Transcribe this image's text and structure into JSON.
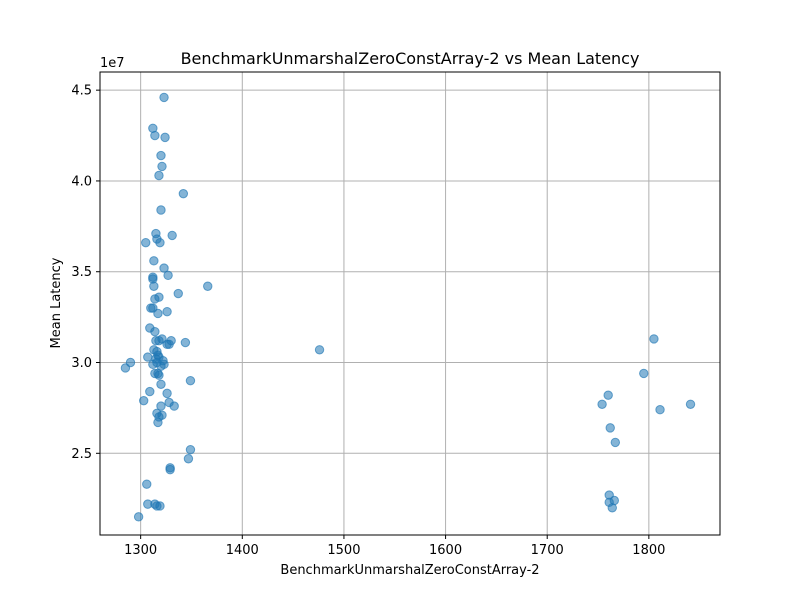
{
  "chart_data": {
    "type": "scatter",
    "title": "BenchmarkUnmarshalZeroConstArray-2 vs Mean Latency",
    "xlabel": "BenchmarkUnmarshalZeroConstArray-2",
    "ylabel": "Mean Latency",
    "y_offset_label": "1e7",
    "xlim": [
      1260,
      1870
    ],
    "ylim": [
      2.05,
      4.6
    ],
    "x_ticks": [
      1300,
      1400,
      1500,
      1600,
      1700,
      1800
    ],
    "x_tick_labels": [
      "1300",
      "1400",
      "1500",
      "1600",
      "1700",
      "1800"
    ],
    "y_ticks": [
      2.5,
      3.0,
      3.5,
      4.0,
      4.5
    ],
    "y_tick_labels": [
      "2.5",
      "3.0",
      "3.5",
      "4.0",
      "4.5"
    ],
    "grid": true,
    "marker_color": "#1f77b4",
    "marker_alpha": 0.55,
    "series": [
      {
        "x": [
          1323,
          1312,
          1314,
          1324,
          1320,
          1321,
          1318,
          1342,
          1320,
          1331,
          1315,
          1305,
          1316,
          1319,
          1323,
          1313,
          1327,
          1312,
          1312,
          1366,
          1313,
          1337,
          1314,
          1318,
          1310,
          1312,
          1326,
          1317,
          1309,
          1314,
          1321,
          1318,
          1315,
          1330,
          1344,
          1326,
          1328,
          1313,
          1316,
          1317,
          1307,
          1318,
          1322,
          1315,
          1323,
          1290,
          1316,
          1312,
          1320,
          1285,
          1317,
          1314,
          1318,
          1349,
          1320,
          1309,
          1326,
          1303,
          1328,
          1333,
          1320,
          1316,
          1321,
          1318,
          1317,
          1349,
          1347,
          1329,
          1329,
          1306,
          1307,
          1314,
          1319,
          1316,
          1298,
          1476,
          1805,
          1795,
          1760,
          1754,
          1841,
          1811,
          1762,
          1767,
          1761,
          1766,
          1761,
          1764
        ],
        "y": [
          4.46,
          4.29,
          4.25,
          4.24,
          4.14,
          4.08,
          4.03,
          3.93,
          3.84,
          3.7,
          3.71,
          3.66,
          3.68,
          3.66,
          3.52,
          3.56,
          3.48,
          3.47,
          3.46,
          3.42,
          3.42,
          3.38,
          3.35,
          3.36,
          3.3,
          3.3,
          3.28,
          3.27,
          3.19,
          3.17,
          3.13,
          3.12,
          3.12,
          3.12,
          3.11,
          3.1,
          3.1,
          3.07,
          3.06,
          3.04,
          3.03,
          3.03,
          3.01,
          3.02,
          2.99,
          3.0,
          3.0,
          2.99,
          2.98,
          2.97,
          2.94,
          2.94,
          2.93,
          2.9,
          2.88,
          2.84,
          2.83,
          2.79,
          2.78,
          2.76,
          2.76,
          2.72,
          2.71,
          2.7,
          2.67,
          2.52,
          2.47,
          2.42,
          2.41,
          2.33,
          2.22,
          2.22,
          2.21,
          2.21,
          2.15,
          3.07,
          3.13,
          2.94,
          2.82,
          2.77,
          2.77,
          2.74,
          2.64,
          2.56,
          2.27,
          2.24,
          2.23,
          2.2
        ]
      }
    ]
  }
}
